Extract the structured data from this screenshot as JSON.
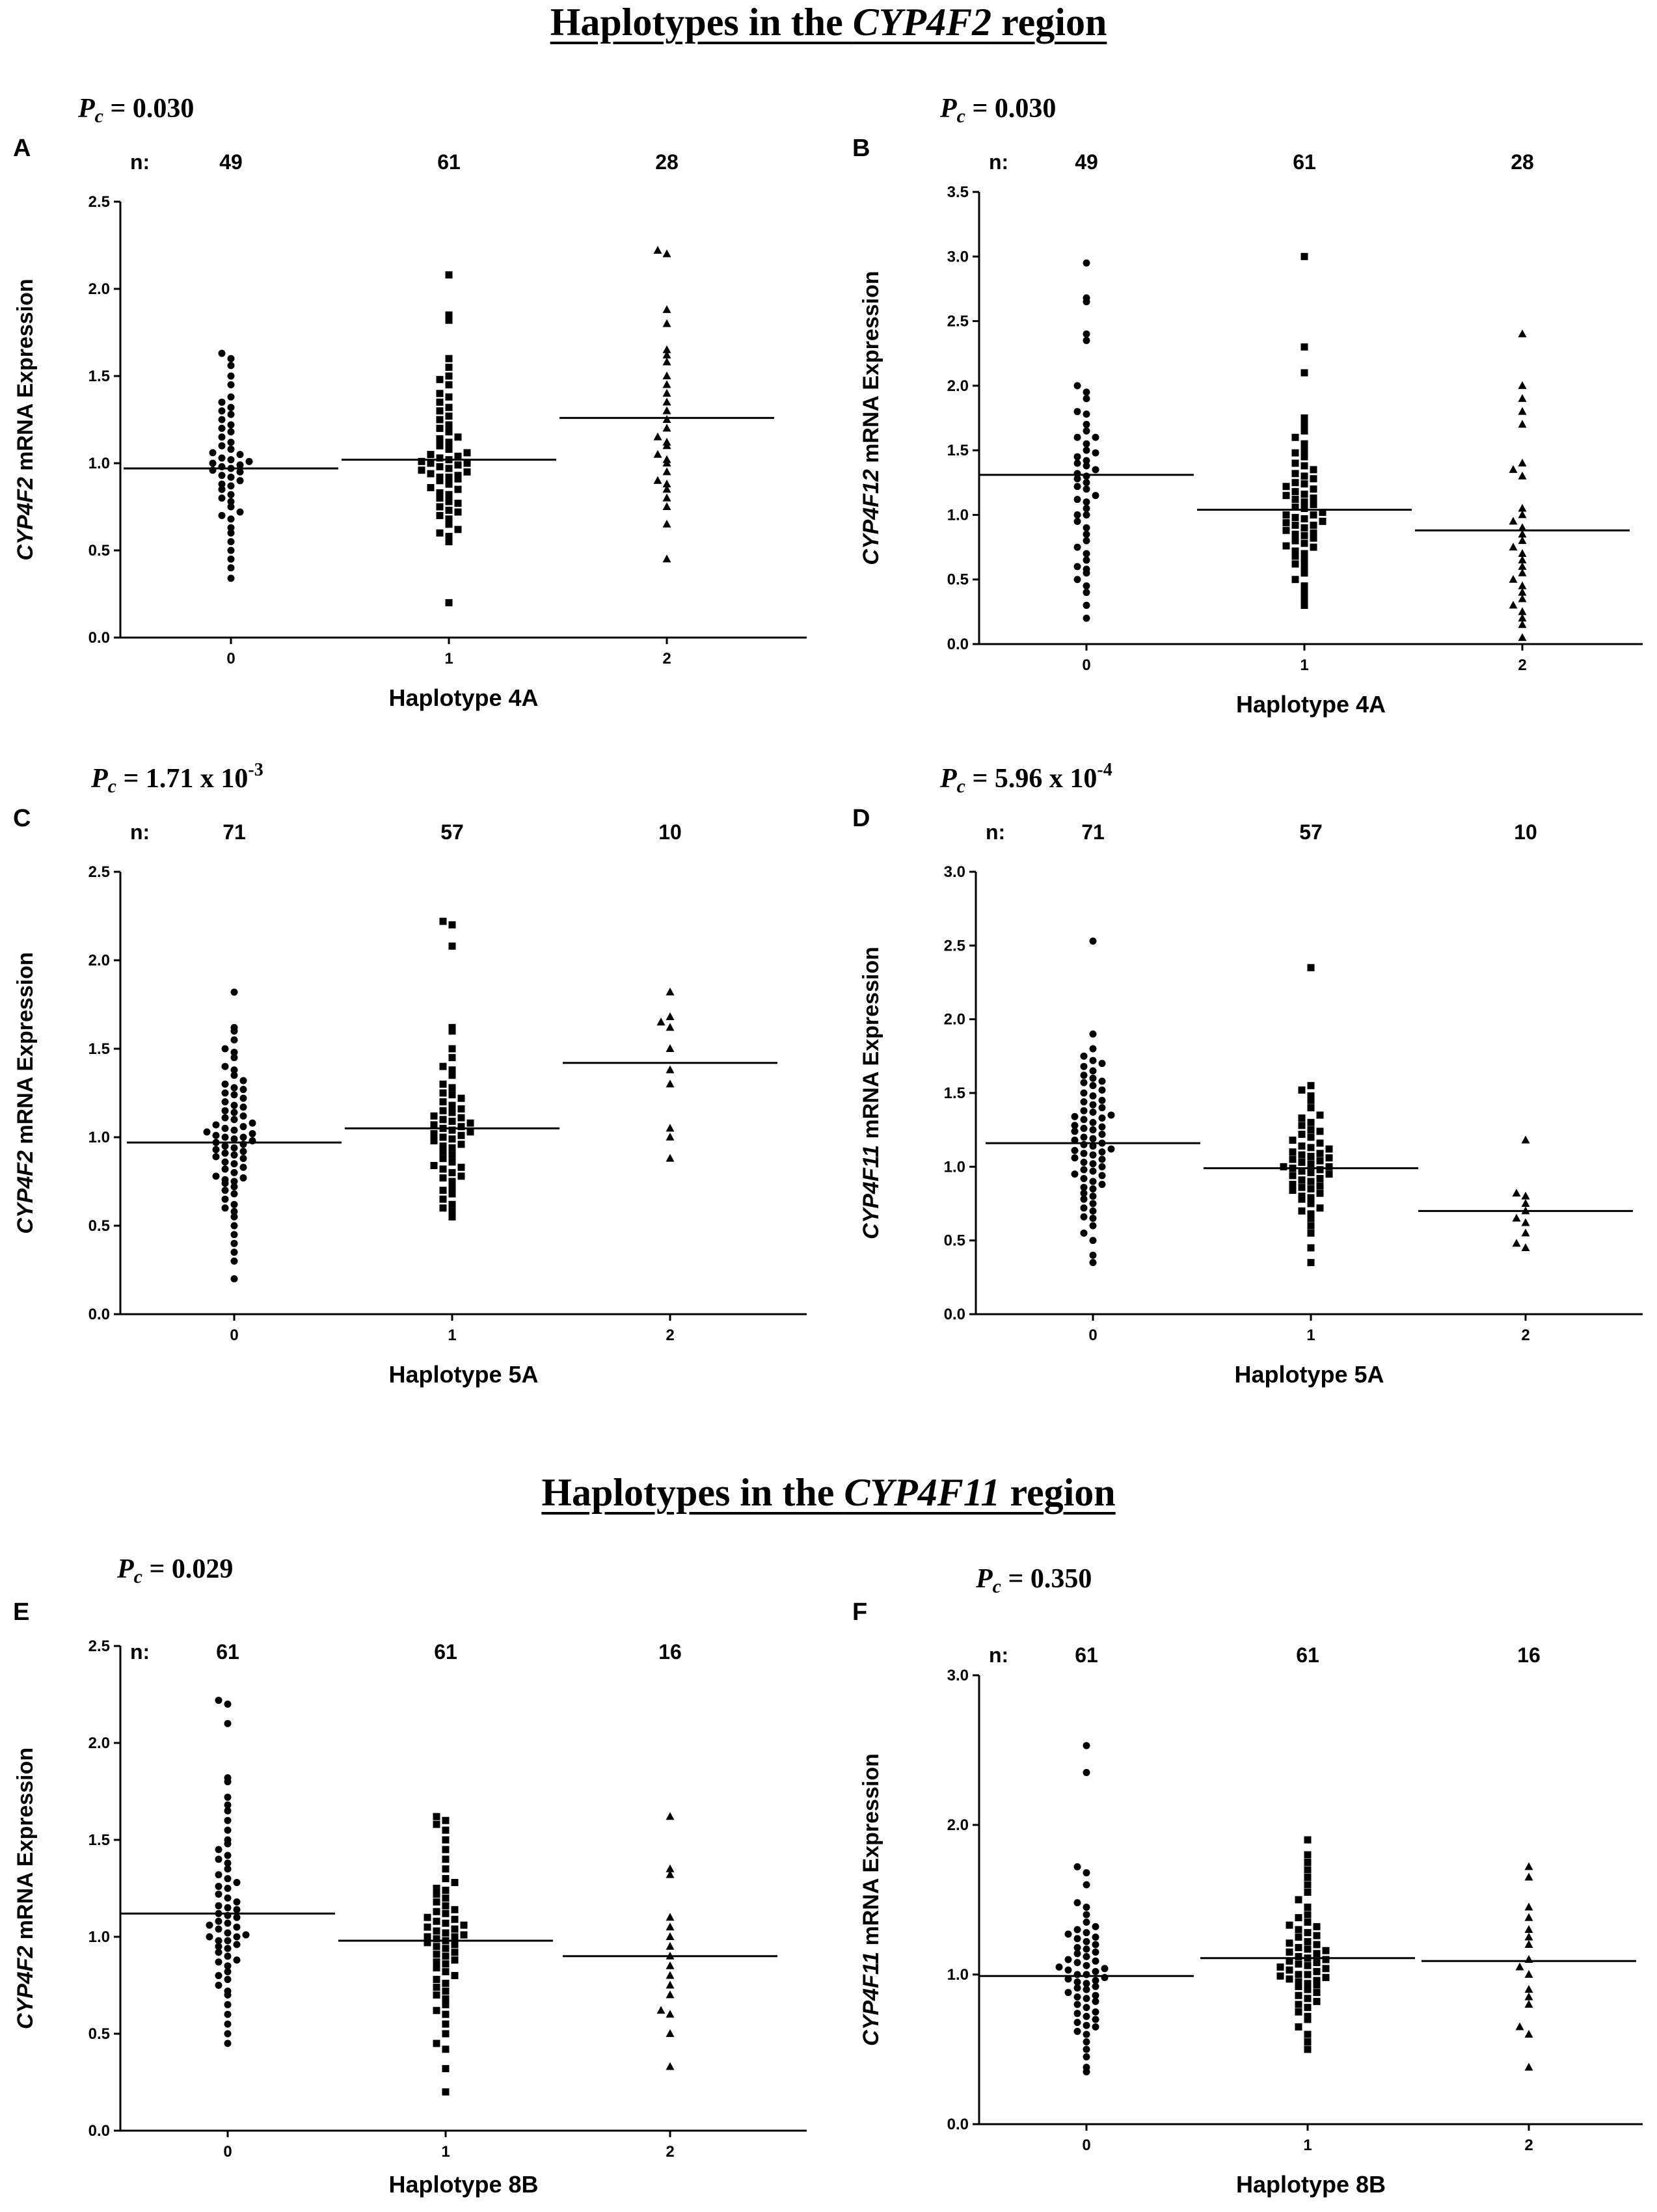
{
  "titles": {
    "top": {
      "prefix": "Haplotypes in the ",
      "gene": "CYP4F2",
      "suffix": " region"
    },
    "bottom": {
      "prefix": "Haplotypes in the ",
      "gene": "CYP4F11",
      "suffix": " region"
    }
  },
  "n_prefix": "n:",
  "chart_data": [
    {
      "id": "A",
      "type": "scatter",
      "letter": "A",
      "pc": {
        "base": "0.030",
        "exp": ""
      },
      "ylabel": {
        "gene": "CYP4F2",
        "rest": " mRNA Expression"
      },
      "xlabel": "Haplotype 4A",
      "categories": [
        "0",
        "1",
        "2"
      ],
      "n": [
        "49",
        "61",
        "28"
      ],
      "ylim": [
        0,
        2.5
      ],
      "yticks": [
        "0.0",
        "0.5",
        "1.0",
        "1.5",
        "2.0",
        "2.5"
      ],
      "markers": [
        "circle",
        "square",
        "triangle"
      ],
      "means": [
        0.97,
        1.02,
        1.26
      ],
      "values": [
        [
          0.34,
          0.4,
          0.45,
          0.5,
          0.55,
          0.6,
          0.63,
          0.68,
          0.7,
          0.72,
          0.75,
          0.78,
          0.8,
          0.82,
          0.85,
          0.87,
          0.88,
          0.9,
          0.92,
          0.93,
          0.95,
          0.96,
          0.97,
          0.98,
          0.99,
          1.0,
          1.01,
          1.02,
          1.03,
          1.05,
          1.06,
          1.08,
          1.1,
          1.12,
          1.15,
          1.18,
          1.2,
          1.22,
          1.25,
          1.28,
          1.3,
          1.32,
          1.35,
          1.38,
          1.45,
          1.5,
          1.56,
          1.6,
          1.63
        ],
        [
          0.2,
          0.55,
          0.58,
          0.6,
          0.62,
          0.65,
          0.68,
          0.7,
          0.72,
          0.73,
          0.75,
          0.77,
          0.78,
          0.8,
          0.82,
          0.83,
          0.85,
          0.86,
          0.88,
          0.9,
          0.91,
          0.92,
          0.93,
          0.94,
          0.95,
          0.96,
          0.97,
          0.98,
          0.99,
          1.0,
          1.0,
          1.01,
          1.02,
          1.03,
          1.04,
          1.05,
          1.06,
          1.08,
          1.1,
          1.12,
          1.14,
          1.15,
          1.18,
          1.2,
          1.22,
          1.25,
          1.27,
          1.3,
          1.32,
          1.35,
          1.38,
          1.4,
          1.45,
          1.48,
          1.5,
          1.55,
          1.6,
          1.82,
          1.85,
          2.08,
          0.92
        ],
        [
          0.45,
          0.65,
          0.75,
          0.8,
          0.85,
          0.88,
          0.9,
          0.95,
          1.0,
          1.02,
          1.05,
          1.1,
          1.12,
          1.15,
          1.2,
          1.25,
          1.3,
          1.35,
          1.4,
          1.45,
          1.5,
          1.58,
          1.62,
          1.65,
          1.8,
          1.88,
          2.2,
          2.22
        ]
      ]
    },
    {
      "id": "B",
      "type": "scatter",
      "letter": "B",
      "pc": {
        "base": "0.030",
        "exp": ""
      },
      "ylabel": {
        "gene": "CYP4F12",
        "rest": " mRNA Expression"
      },
      "xlabel": "Haplotype 4A",
      "categories": [
        "0",
        "1",
        "2"
      ],
      "n": [
        "49",
        "61",
        "28"
      ],
      "ylim": [
        0,
        3.5
      ],
      "yticks": [
        "0.0",
        "0.5",
        "1.0",
        "1.5",
        "2.0",
        "2.5",
        "3.0",
        "3.5"
      ],
      "markers": [
        "circle",
        "square",
        "triangle"
      ],
      "means": [
        1.31,
        1.04,
        0.88
      ],
      "values": [
        [
          0.2,
          0.3,
          0.4,
          0.45,
          0.5,
          0.55,
          0.6,
          0.65,
          0.7,
          0.8,
          0.85,
          0.9,
          0.95,
          1.0,
          1.05,
          1.1,
          1.15,
          1.2,
          1.25,
          1.3,
          1.32,
          1.35,
          1.38,
          1.4,
          1.45,
          1.5,
          1.55,
          1.6,
          1.65,
          1.7,
          1.8,
          1.9,
          1.95,
          2.0,
          2.35,
          2.4,
          2.65,
          2.68,
          2.95,
          1.0,
          1.12,
          1.28,
          1.22,
          0.75,
          0.58,
          1.48,
          1.78,
          1.6,
          1.42
        ],
        [
          0.3,
          0.35,
          0.4,
          0.45,
          0.5,
          0.55,
          0.6,
          0.65,
          0.7,
          0.72,
          0.75,
          0.78,
          0.8,
          0.82,
          0.85,
          0.88,
          0.9,
          0.92,
          0.95,
          0.98,
          1.0,
          1.0,
          1.02,
          1.05,
          1.08,
          1.1,
          1.12,
          1.15,
          1.18,
          1.2,
          1.22,
          1.25,
          1.28,
          1.3,
          1.35,
          1.4,
          1.45,
          1.5,
          1.55,
          1.6,
          1.7,
          1.75,
          2.1,
          2.3,
          3.0,
          0.62,
          0.68,
          0.86,
          0.94,
          0.97,
          1.06,
          1.13,
          1.16,
          1.24,
          1.32,
          1.38,
          1.48,
          1.65,
          0.84,
          0.76,
          0.92
        ],
        [
          0.05,
          0.15,
          0.25,
          0.3,
          0.35,
          0.4,
          0.45,
          0.5,
          0.55,
          0.6,
          0.65,
          0.7,
          0.75,
          0.8,
          0.85,
          0.9,
          0.95,
          1.0,
          1.05,
          1.3,
          1.35,
          1.4,
          1.7,
          1.8,
          1.9,
          2.0,
          2.4,
          0.2
        ]
      ]
    },
    {
      "id": "C",
      "type": "scatter",
      "letter": "C",
      "pc": {
        "base": "1.71 x 10",
        "exp": "-3"
      },
      "ylabel": {
        "gene": "CYP4F2",
        "rest": " mRNA Expression"
      },
      "xlabel": "Haplotype 5A",
      "categories": [
        "0",
        "1",
        "2"
      ],
      "n": [
        "71",
        "57",
        "10"
      ],
      "ylim": [
        0,
        2.5
      ],
      "yticks": [
        "0.0",
        "0.5",
        "1.0",
        "1.5",
        "2.0",
        "2.5"
      ],
      "markers": [
        "circle",
        "square",
        "triangle"
      ],
      "means": [
        0.97,
        1.05,
        1.42
      ],
      "values": [
        [
          0.2,
          0.3,
          0.35,
          0.4,
          0.45,
          0.5,
          0.55,
          0.58,
          0.6,
          0.62,
          0.65,
          0.68,
          0.7,
          0.72,
          0.74,
          0.75,
          0.77,
          0.78,
          0.8,
          0.82,
          0.83,
          0.85,
          0.86,
          0.88,
          0.89,
          0.9,
          0.91,
          0.92,
          0.93,
          0.94,
          0.95,
          0.96,
          0.97,
          0.98,
          0.99,
          1.0,
          1.0,
          1.01,
          1.02,
          1.03,
          1.04,
          1.05,
          1.06,
          1.07,
          1.08,
          1.1,
          1.11,
          1.12,
          1.14,
          1.15,
          1.17,
          1.18,
          1.2,
          1.22,
          1.24,
          1.25,
          1.27,
          1.28,
          1.3,
          1.32,
          1.35,
          1.38,
          1.4,
          1.45,
          1.48,
          1.5,
          1.55,
          1.6,
          1.62,
          1.82,
          0.76
        ],
        [
          0.55,
          0.58,
          0.6,
          0.62,
          0.65,
          0.68,
          0.7,
          0.72,
          0.75,
          0.78,
          0.8,
          0.82,
          0.84,
          0.86,
          0.88,
          0.9,
          0.92,
          0.94,
          0.96,
          0.98,
          1.0,
          1.01,
          1.02,
          1.03,
          1.04,
          1.05,
          1.06,
          1.07,
          1.08,
          1.1,
          1.12,
          1.14,
          1.15,
          1.18,
          1.2,
          1.22,
          1.25,
          1.28,
          1.3,
          1.35,
          1.4,
          1.45,
          1.5,
          1.6,
          1.62,
          2.08,
          2.2,
          2.22,
          0.95,
          0.99,
          1.09,
          1.11,
          1.16,
          1.24,
          0.83,
          0.77,
          1.38
        ],
        [
          0.88,
          1.0,
          1.05,
          1.3,
          1.38,
          1.5,
          1.62,
          1.65,
          1.68,
          1.82
        ]
      ]
    },
    {
      "id": "D",
      "type": "scatter",
      "letter": "D",
      "pc": {
        "base": "5.96 x 10",
        "exp": "-4"
      },
      "ylabel": {
        "gene": "CYP4F11",
        "rest": " mRNA Expression"
      },
      "xlabel": "Haplotype 5A",
      "categories": [
        "0",
        "1",
        "2"
      ],
      "n": [
        "71",
        "57",
        "10"
      ],
      "ylim": [
        0,
        3.0
      ],
      "yticks": [
        "0.0",
        "0.5",
        "1.0",
        "1.5",
        "2.0",
        "2.5",
        "3.0"
      ],
      "markers": [
        "circle",
        "square",
        "triangle"
      ],
      "means": [
        1.16,
        0.99,
        0.7
      ],
      "values": [
        [
          0.35,
          0.4,
          0.5,
          0.55,
          0.6,
          0.65,
          0.7,
          0.72,
          0.75,
          0.78,
          0.8,
          0.82,
          0.85,
          0.88,
          0.9,
          0.92,
          0.95,
          0.97,
          1.0,
          1.02,
          1.05,
          1.06,
          1.08,
          1.1,
          1.12,
          1.14,
          1.15,
          1.16,
          1.18,
          1.2,
          1.22,
          1.24,
          1.25,
          1.27,
          1.28,
          1.3,
          1.32,
          1.34,
          1.35,
          1.37,
          1.38,
          1.4,
          1.42,
          1.45,
          1.48,
          1.5,
          1.52,
          1.55,
          1.58,
          1.6,
          1.62,
          1.65,
          1.68,
          1.7,
          1.72,
          1.75,
          1.8,
          1.9,
          2.53,
          0.98,
          1.03,
          1.11,
          1.19,
          1.26,
          1.33,
          0.86,
          0.94,
          1.44,
          1.57,
          0.66,
          1.09
        ],
        [
          0.35,
          0.45,
          0.55,
          0.6,
          0.65,
          0.68,
          0.7,
          0.72,
          0.75,
          0.78,
          0.8,
          0.82,
          0.84,
          0.86,
          0.88,
          0.9,
          0.92,
          0.94,
          0.95,
          0.96,
          0.98,
          1.0,
          1.0,
          1.02,
          1.03,
          1.05,
          1.06,
          1.08,
          1.1,
          1.12,
          1.14,
          1.16,
          1.18,
          1.2,
          1.22,
          1.25,
          1.28,
          1.3,
          1.35,
          1.4,
          1.45,
          1.48,
          1.52,
          1.55,
          2.35,
          0.85,
          0.91,
          0.99,
          1.04,
          1.09,
          1.13,
          0.79,
          0.87,
          1.24,
          1.33,
          0.97,
          1.07
        ],
        [
          0.45,
          0.48,
          0.55,
          0.62,
          0.65,
          0.7,
          0.75,
          0.8,
          0.82,
          1.18
        ]
      ]
    },
    {
      "id": "E",
      "type": "scatter",
      "letter": "E",
      "pc": {
        "base": "0.029",
        "exp": ""
      },
      "ylabel": {
        "gene": "CYP4F2",
        "rest": " mRNA Expression"
      },
      "xlabel": "Haplotype 8B",
      "categories": [
        "0",
        "1",
        "2"
      ],
      "n": [
        "61",
        "61",
        "16"
      ],
      "ylim": [
        0,
        2.5
      ],
      "yticks": [
        "0.0",
        "0.5",
        "1.0",
        "1.5",
        "2.0",
        "2.5"
      ],
      "markers": [
        "circle",
        "square",
        "triangle"
      ],
      "means": [
        1.12,
        0.98,
        0.9
      ],
      "values": [
        [
          0.45,
          0.5,
          0.55,
          0.6,
          0.65,
          0.7,
          0.72,
          0.75,
          0.78,
          0.8,
          0.82,
          0.85,
          0.88,
          0.9,
          0.92,
          0.94,
          0.95,
          0.96,
          0.98,
          1.0,
          1.0,
          1.02,
          1.04,
          1.05,
          1.06,
          1.08,
          1.1,
          1.12,
          1.14,
          1.15,
          1.18,
          1.2,
          1.22,
          1.25,
          1.28,
          1.3,
          1.32,
          1.35,
          1.38,
          1.4,
          1.42,
          1.45,
          1.48,
          1.5,
          1.55,
          1.6,
          1.65,
          1.68,
          1.72,
          1.8,
          1.82,
          2.1,
          2.2,
          2.22,
          0.98,
          1.07,
          1.16,
          1.26,
          0.87,
          1.11,
          1.01
        ],
        [
          0.2,
          0.32,
          0.42,
          0.45,
          0.5,
          0.55,
          0.6,
          0.62,
          0.65,
          0.68,
          0.7,
          0.72,
          0.74,
          0.76,
          0.78,
          0.8,
          0.82,
          0.84,
          0.86,
          0.88,
          0.9,
          0.92,
          0.94,
          0.95,
          0.96,
          0.98,
          1.0,
          1.0,
          1.01,
          1.02,
          1.03,
          1.04,
          1.05,
          1.06,
          1.08,
          1.1,
          1.12,
          1.14,
          1.16,
          1.18,
          1.2,
          1.22,
          1.25,
          1.28,
          1.3,
          1.35,
          1.4,
          1.45,
          1.5,
          1.55,
          1.58,
          1.6,
          1.62,
          0.97,
          0.99,
          1.07,
          1.09,
          0.91,
          0.87,
          1.13,
          1.24
        ],
        [
          0.33,
          0.5,
          0.6,
          0.62,
          0.7,
          0.8,
          0.85,
          0.9,
          0.95,
          1.0,
          1.05,
          1.1,
          1.32,
          1.35,
          1.62,
          0.75
        ]
      ]
    },
    {
      "id": "F",
      "type": "scatter",
      "letter": "F",
      "pc": {
        "base": "0.350",
        "exp": ""
      },
      "ylabel": {
        "gene": "CYP4F11",
        "rest": " mRNA Expression"
      },
      "xlabel": "Haplotype 8B",
      "categories": [
        "0",
        "1",
        "2"
      ],
      "n": [
        "61",
        "61",
        "16"
      ],
      "ylim": [
        0,
        3.0
      ],
      "yticks": [
        "0.0",
        "1.0",
        "2.0",
        "3.0"
      ],
      "markers": [
        "circle",
        "square",
        "triangle"
      ],
      "means": [
        0.99,
        1.11,
        1.09
      ],
      "values": [
        [
          0.35,
          0.38,
          0.45,
          0.5,
          0.55,
          0.6,
          0.62,
          0.65,
          0.68,
          0.7,
          0.72,
          0.75,
          0.78,
          0.8,
          0.82,
          0.84,
          0.86,
          0.88,
          0.9,
          0.92,
          0.94,
          0.95,
          0.96,
          0.98,
          1.0,
          1.0,
          1.02,
          1.04,
          1.05,
          1.06,
          1.08,
          1.1,
          1.12,
          1.14,
          1.15,
          1.18,
          1.2,
          1.22,
          1.25,
          1.28,
          1.3,
          1.32,
          1.35,
          1.4,
          1.45,
          1.48,
          1.6,
          1.68,
          1.72,
          2.35,
          2.53,
          0.97,
          1.03,
          1.09,
          0.74,
          0.85,
          0.91,
          1.17,
          1.27,
          0.66,
          1.24
        ],
        [
          0.5,
          0.55,
          0.6,
          0.65,
          0.7,
          0.72,
          0.75,
          0.78,
          0.8,
          0.82,
          0.84,
          0.86,
          0.88,
          0.9,
          0.92,
          0.94,
          0.95,
          0.96,
          0.98,
          1.0,
          1.0,
          1.02,
          1.04,
          1.05,
          1.06,
          1.08,
          1.1,
          1.12,
          1.14,
          1.16,
          1.18,
          1.2,
          1.22,
          1.25,
          1.28,
          1.3,
          1.32,
          1.35,
          1.38,
          1.4,
          1.45,
          1.5,
          1.55,
          1.6,
          1.65,
          1.7,
          1.75,
          1.8,
          1.9,
          0.99,
          1.03,
          1.07,
          1.11,
          1.15,
          1.21,
          1.26,
          0.93,
          0.97,
          1.09,
          1.17,
          1.33
        ],
        [
          0.38,
          0.6,
          0.65,
          0.8,
          0.85,
          0.9,
          1.0,
          1.05,
          1.1,
          1.2,
          1.25,
          1.3,
          1.38,
          1.45,
          1.65,
          1.72
        ]
      ]
    }
  ]
}
